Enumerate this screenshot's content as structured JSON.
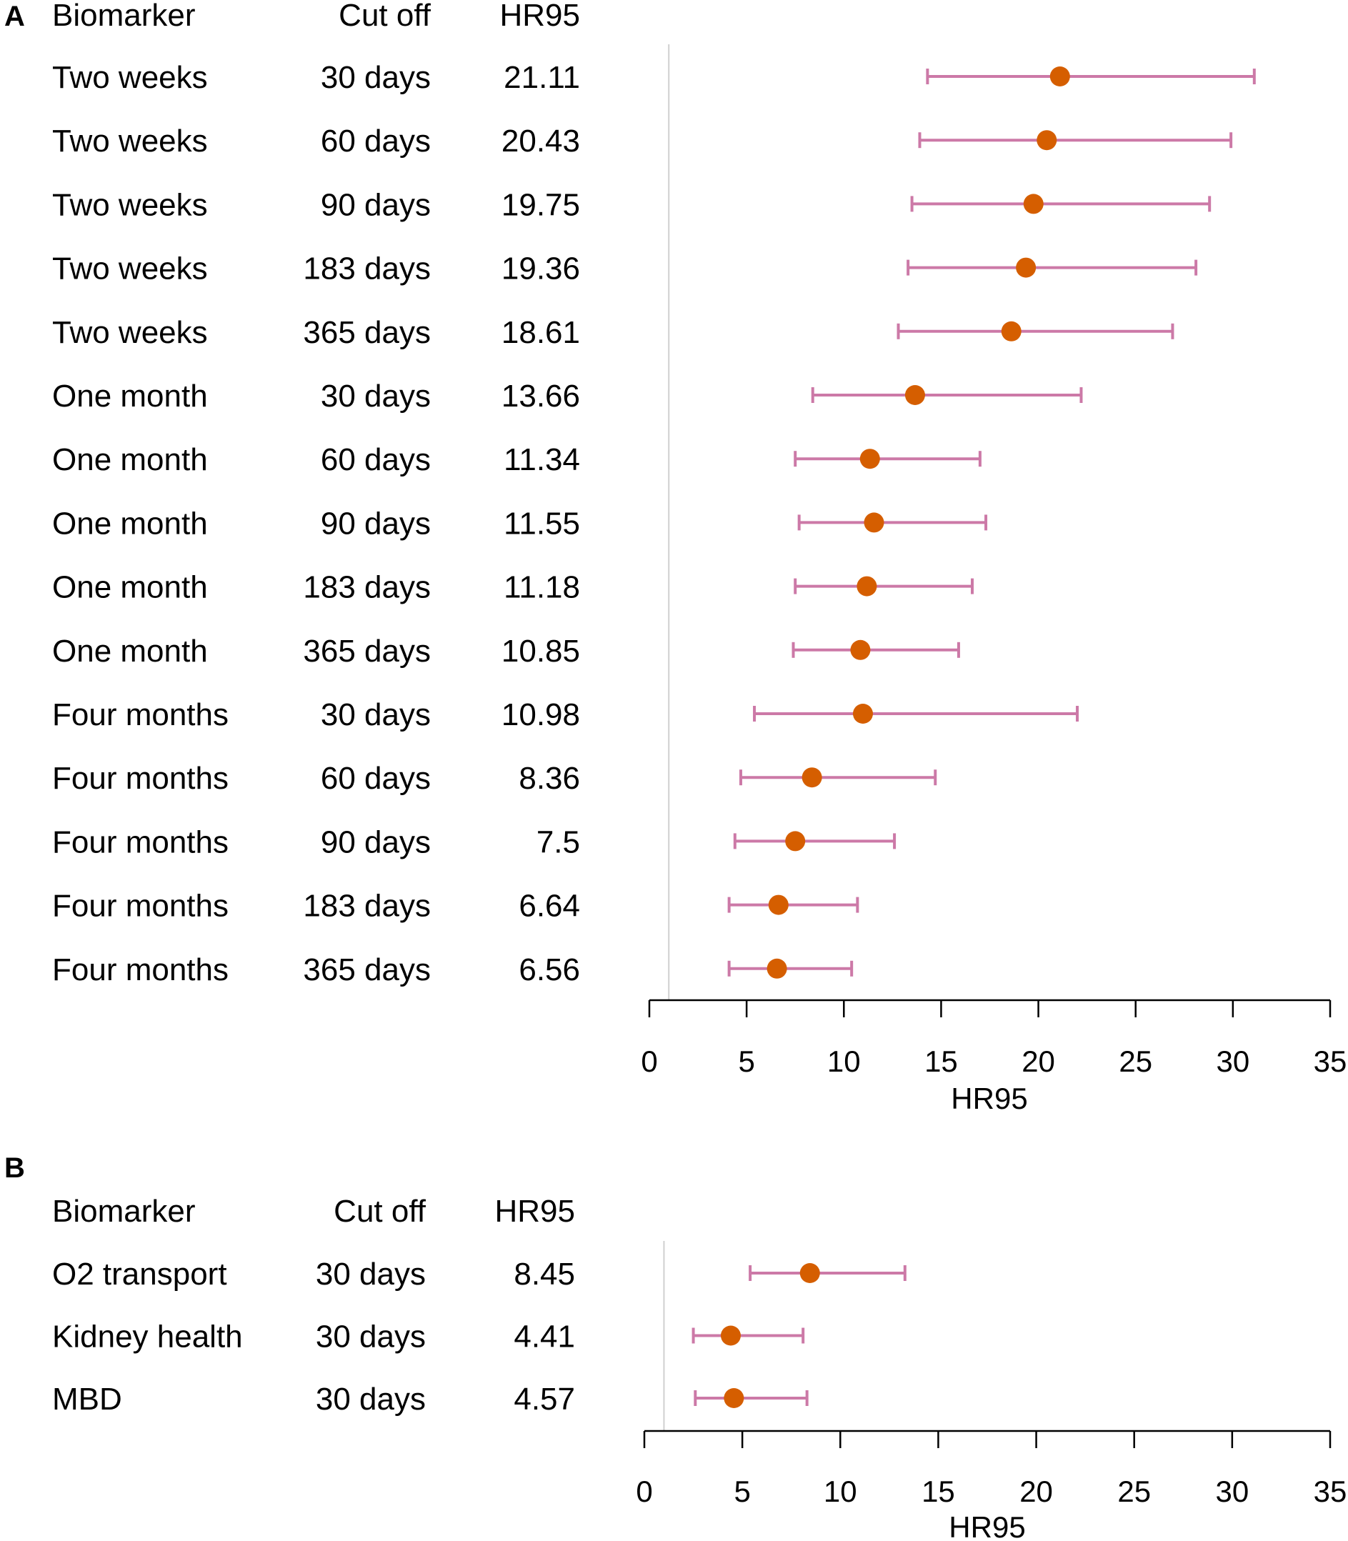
{
  "colors": {
    "ci": "#cc79a7",
    "point": "#d55e00",
    "ref_line": "#d0d0d0",
    "axis": "#000000"
  },
  "chart_data": [
    {
      "panel": "A",
      "type": "forest",
      "headers": {
        "biomarker": "Biomarker",
        "cutoff": "Cut off",
        "hr": "HR95"
      },
      "xlabel": "HR95",
      "xlim": [
        0,
        35
      ],
      "xticks": [
        0,
        5,
        10,
        15,
        20,
        25,
        30,
        35
      ],
      "reference_line": 1,
      "rows": [
        {
          "biomarker": "Two weeks",
          "cutoff": "30 days",
          "hr_label": "21.11",
          "hr": 21.11,
          "lower": 14.3,
          "upper": 31.1
        },
        {
          "biomarker": "Two weeks",
          "cutoff": "60 days",
          "hr_label": "20.43",
          "hr": 20.43,
          "lower": 13.9,
          "upper": 29.9
        },
        {
          "biomarker": "Two weeks",
          "cutoff": "90 days",
          "hr_label": "19.75",
          "hr": 19.75,
          "lower": 13.5,
          "upper": 28.8
        },
        {
          "biomarker": "Two weeks",
          "cutoff": "183 days",
          "hr_label": "19.36",
          "hr": 19.36,
          "lower": 13.3,
          "upper": 28.1
        },
        {
          "biomarker": "Two weeks",
          "cutoff": "365 days",
          "hr_label": "18.61",
          "hr": 18.61,
          "lower": 12.8,
          "upper": 26.9
        },
        {
          "biomarker": "One month",
          "cutoff": "30 days",
          "hr_label": "13.66",
          "hr": 13.66,
          "lower": 8.4,
          "upper": 22.2
        },
        {
          "biomarker": "One month",
          "cutoff": "60 days",
          "hr_label": "11.34",
          "hr": 11.34,
          "lower": 7.5,
          "upper": 17.0
        },
        {
          "biomarker": "One month",
          "cutoff": "90 days",
          "hr_label": "11.55",
          "hr": 11.55,
          "lower": 7.7,
          "upper": 17.3
        },
        {
          "biomarker": "One month",
          "cutoff": "183 days",
          "hr_label": "11.18",
          "hr": 11.18,
          "lower": 7.5,
          "upper": 16.6
        },
        {
          "biomarker": "One month",
          "cutoff": "365 days",
          "hr_label": "10.85",
          "hr": 10.85,
          "lower": 7.4,
          "upper": 15.9
        },
        {
          "biomarker": "Four months",
          "cutoff": "30 days",
          "hr_label": "10.98",
          "hr": 10.98,
          "lower": 5.4,
          "upper": 22.0
        },
        {
          "biomarker": "Four months",
          "cutoff": "60 days",
          "hr_label": "8.36",
          "hr": 8.36,
          "lower": 4.7,
          "upper": 14.7
        },
        {
          "biomarker": "Four months",
          "cutoff": "90 days",
          "hr_label": "7.5",
          "hr": 7.5,
          "lower": 4.4,
          "upper": 12.6
        },
        {
          "biomarker": "Four months",
          "cutoff": "183 days",
          "hr_label": "6.64",
          "hr": 6.64,
          "lower": 4.1,
          "upper": 10.7
        },
        {
          "biomarker": "Four months",
          "cutoff": "365 days",
          "hr_label": "6.56",
          "hr": 6.56,
          "lower": 4.1,
          "upper": 10.4
        }
      ]
    },
    {
      "panel": "B",
      "type": "forest",
      "headers": {
        "biomarker": "Biomarker",
        "cutoff": "Cut off",
        "hr": "HR95"
      },
      "xlabel": "HR95",
      "xlim": [
        0,
        35
      ],
      "xticks": [
        0,
        5,
        10,
        15,
        20,
        25,
        30,
        35
      ],
      "reference_line": 1,
      "rows": [
        {
          "biomarker": "O2 transport",
          "cutoff": "30 days",
          "hr_label": "8.45",
          "hr": 8.45,
          "lower": 5.4,
          "upper": 13.3
        },
        {
          "biomarker": "Kidney health",
          "cutoff": "30 days",
          "hr_label": "4.41",
          "hr": 4.41,
          "lower": 2.5,
          "upper": 8.1
        },
        {
          "biomarker": "MBD",
          "cutoff": "30 days",
          "hr_label": "4.57",
          "hr": 4.57,
          "lower": 2.6,
          "upper": 8.3
        }
      ]
    }
  ]
}
